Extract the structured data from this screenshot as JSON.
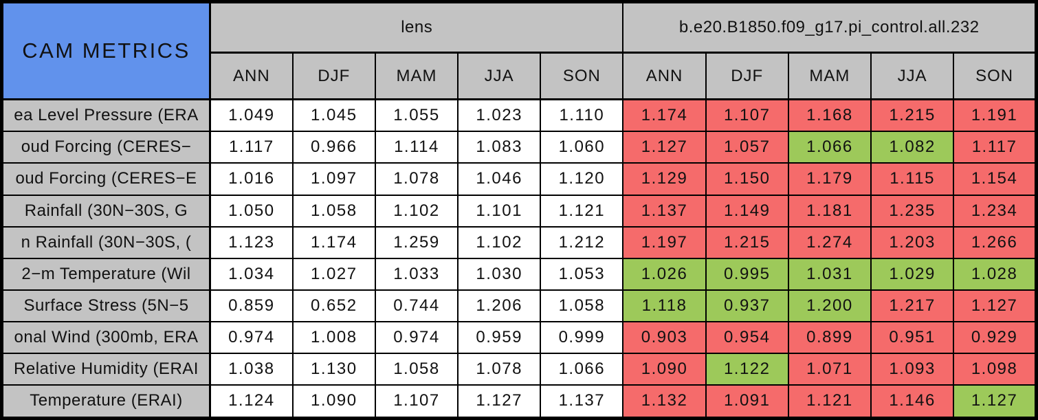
{
  "colors": {
    "header_blue": "#6192ec",
    "header_grey": "#c3c3c3",
    "cell_white": "#ffffff",
    "cell_red": "#f56b6b",
    "cell_green": "#9dc95a",
    "border": "#000000"
  },
  "chart_data": {
    "type": "table",
    "title": "CAM METRICS",
    "column_groups": [
      {
        "label": "lens"
      },
      {
        "label": "b.e20.B1850.f09_g17.pi_control.all.232"
      }
    ],
    "seasons": [
      "ANN",
      "DJF",
      "MAM",
      "JJA",
      "SON"
    ],
    "rows": [
      {
        "label": "ea Level Pressure (ERA",
        "lens": [
          "1.049",
          "1.045",
          "1.055",
          "1.023",
          "1.110"
        ],
        "control": [
          "1.174",
          "1.107",
          "1.168",
          "1.215",
          "1.191"
        ],
        "control_colors": [
          "red",
          "red",
          "red",
          "red",
          "red"
        ]
      },
      {
        "label": "oud Forcing (CERES−",
        "lens": [
          "1.117",
          "0.966",
          "1.114",
          "1.083",
          "1.060"
        ],
        "control": [
          "1.127",
          "1.057",
          "1.066",
          "1.082",
          "1.117"
        ],
        "control_colors": [
          "red",
          "red",
          "green",
          "green",
          "red"
        ]
      },
      {
        "label": "oud Forcing (CERES−E",
        "lens": [
          "1.016",
          "1.097",
          "1.078",
          "1.046",
          "1.120"
        ],
        "control": [
          "1.129",
          "1.150",
          "1.179",
          "1.115",
          "1.154"
        ],
        "control_colors": [
          "red",
          "red",
          "red",
          "red",
          "red"
        ]
      },
      {
        "label": "Rainfall (30N−30S, G",
        "lens": [
          "1.050",
          "1.058",
          "1.102",
          "1.101",
          "1.121"
        ],
        "control": [
          "1.137",
          "1.149",
          "1.181",
          "1.235",
          "1.234"
        ],
        "control_colors": [
          "red",
          "red",
          "red",
          "red",
          "red"
        ]
      },
      {
        "label": "n Rainfall (30N−30S, (",
        "lens": [
          "1.123",
          "1.174",
          "1.259",
          "1.102",
          "1.212"
        ],
        "control": [
          "1.197",
          "1.215",
          "1.274",
          "1.203",
          "1.266"
        ],
        "control_colors": [
          "red",
          "red",
          "red",
          "red",
          "red"
        ]
      },
      {
        "label": "2−m Temperature (Wil",
        "lens": [
          "1.034",
          "1.027",
          "1.033",
          "1.030",
          "1.053"
        ],
        "control": [
          "1.026",
          "0.995",
          "1.031",
          "1.029",
          "1.028"
        ],
        "control_colors": [
          "green",
          "green",
          "green",
          "green",
          "green"
        ]
      },
      {
        "label": "Surface Stress (5N−5",
        "lens": [
          "0.859",
          "0.652",
          "0.744",
          "1.206",
          "1.058"
        ],
        "control": [
          "1.118",
          "0.937",
          "1.200",
          "1.217",
          "1.127"
        ],
        "control_colors": [
          "green",
          "green",
          "green",
          "red",
          "red"
        ]
      },
      {
        "label": "onal Wind (300mb, ERA",
        "lens": [
          "0.974",
          "1.008",
          "0.974",
          "0.959",
          "0.999"
        ],
        "control": [
          "0.903",
          "0.954",
          "0.899",
          "0.951",
          "0.929"
        ],
        "control_colors": [
          "red",
          "red",
          "red",
          "red",
          "red"
        ]
      },
      {
        "label": "Relative Humidity (ERAI",
        "lens": [
          "1.038",
          "1.130",
          "1.058",
          "1.078",
          "1.066"
        ],
        "control": [
          "1.090",
          "1.122",
          "1.071",
          "1.093",
          "1.098"
        ],
        "control_colors": [
          "red",
          "green",
          "red",
          "red",
          "red"
        ]
      },
      {
        "label": "Temperature (ERAI)",
        "lens": [
          "1.124",
          "1.090",
          "1.107",
          "1.127",
          "1.137"
        ],
        "control": [
          "1.132",
          "1.091",
          "1.121",
          "1.146",
          "1.127"
        ],
        "control_colors": [
          "red",
          "red",
          "red",
          "red",
          "green"
        ]
      }
    ]
  }
}
